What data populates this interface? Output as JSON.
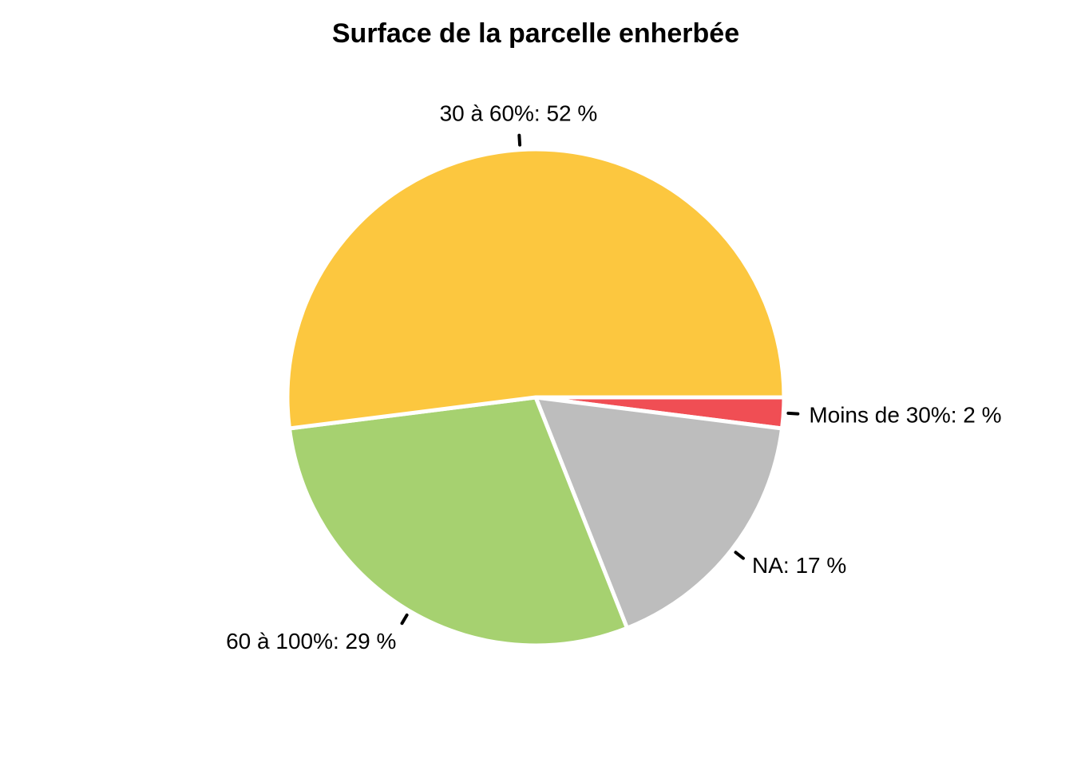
{
  "chart_data": {
    "type": "pie",
    "title": "Surface de la parcelle enherbée",
    "slices": [
      {
        "category": "Moins de 30%",
        "value": 2,
        "label": "Moins de 30%: 2 %",
        "color": "#F04E54"
      },
      {
        "category": "NA",
        "value": 17,
        "label": "NA: 17 %",
        "color": "#BDBDBD"
      },
      {
        "category": "60 à 100%",
        "value": 29,
        "label": "60 à 100%: 29 %",
        "color": "#A6D170"
      },
      {
        "category": "30 à 60%",
        "value": 52,
        "label": "30 à 60%: 52 %",
        "color": "#FCC73F"
      }
    ],
    "start_angle": "3 o'clock",
    "direction": "clockwise",
    "legend": "none"
  }
}
